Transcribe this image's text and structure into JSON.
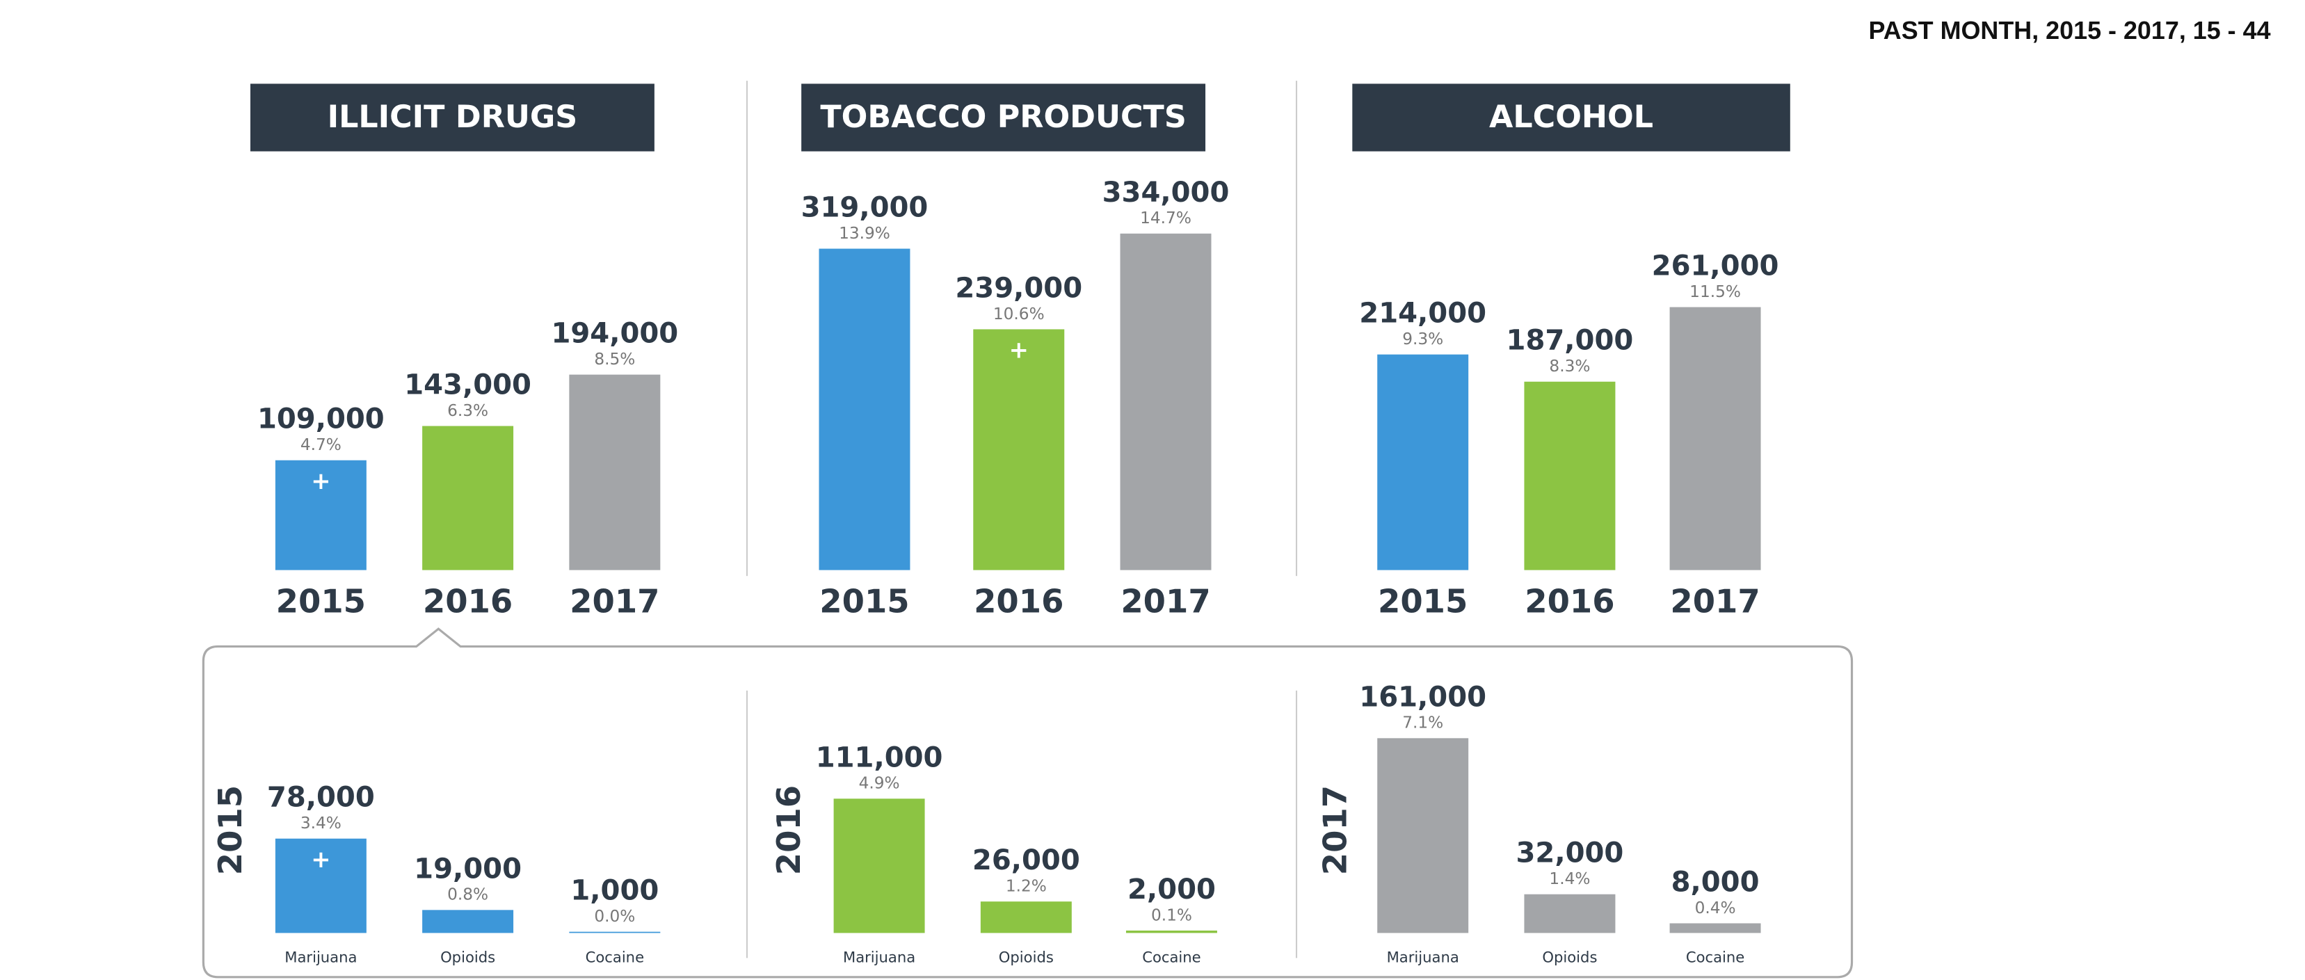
{
  "title": "PAST MONTH, 2015 - 2017, 15 - 44",
  "chart_data": [
    {
      "type": "bar",
      "title": "ILLICIT DRUGS",
      "categories": [
        "2015",
        "2016",
        "2017"
      ],
      "values": [
        109000,
        143000,
        194000
      ],
      "value_labels": [
        "109,000",
        "143,000",
        "194,000"
      ],
      "shares": [
        4.7,
        6.3,
        8.5
      ],
      "share_labels": [
        "4.7%",
        "6.3%",
        "8.5%"
      ],
      "markers": [
        "+",
        null,
        null
      ],
      "colors": [
        "#3d97d9",
        "#8cc443",
        "#a3a5a8"
      ],
      "ylim": [
        0,
        350000
      ]
    },
    {
      "type": "bar",
      "title": "TOBACCO PRODUCTS",
      "categories": [
        "2015",
        "2016",
        "2017"
      ],
      "values": [
        319000,
        239000,
        334000
      ],
      "value_labels": [
        "319,000",
        "239,000",
        "334,000"
      ],
      "shares": [
        13.9,
        10.6,
        14.7
      ],
      "share_labels": [
        "13.9%",
        "10.6%",
        "14.7%"
      ],
      "markers": [
        null,
        "+",
        null
      ],
      "colors": [
        "#3d97d9",
        "#8cc443",
        "#a3a5a8"
      ],
      "ylim": [
        0,
        350000
      ]
    },
    {
      "type": "bar",
      "title": "ALCOHOL",
      "categories": [
        "2015",
        "2016",
        "2017"
      ],
      "values": [
        214000,
        187000,
        261000
      ],
      "value_labels": [
        "214,000",
        "187,000",
        "261,000"
      ],
      "shares": [
        9.3,
        8.3,
        11.5
      ],
      "share_labels": [
        "9.3%",
        "8.3%",
        "11.5%"
      ],
      "markers": [
        null,
        null,
        null
      ],
      "colors": [
        "#3d97d9",
        "#8cc443",
        "#a3a5a8"
      ],
      "ylim": [
        0,
        350000
      ]
    },
    {
      "type": "bar",
      "title": "2015",
      "categories": [
        "Marijuana",
        "Opioids",
        "Cocaine"
      ],
      "values": [
        78000,
        19000,
        1000
      ],
      "value_labels": [
        "78,000",
        "19,000",
        "1,000"
      ],
      "shares": [
        3.4,
        0.8,
        0.0
      ],
      "share_labels": [
        "3.4%",
        "0.8%",
        "0.0%"
      ],
      "markers": [
        "+",
        null,
        null
      ],
      "colors": [
        "#3d97d9",
        "#3d97d9",
        "#3d97d9"
      ],
      "ylim": [
        0,
        170000
      ]
    },
    {
      "type": "bar",
      "title": "2016",
      "categories": [
        "Marijuana",
        "Opioids",
        "Cocaine"
      ],
      "values": [
        111000,
        26000,
        2000
      ],
      "value_labels": [
        "111,000",
        "26,000",
        "2,000"
      ],
      "shares": [
        4.9,
        1.2,
        0.1
      ],
      "share_labels": [
        "4.9%",
        "1.2%",
        "0.1%"
      ],
      "markers": [
        null,
        null,
        null
      ],
      "colors": [
        "#8cc443",
        "#8cc443",
        "#8cc443"
      ],
      "ylim": [
        0,
        170000
      ]
    },
    {
      "type": "bar",
      "title": "2017",
      "categories": [
        "Marijuana",
        "Opioids",
        "Cocaine"
      ],
      "values": [
        161000,
        32000,
        8000
      ],
      "value_labels": [
        "161,000",
        "32,000",
        "8,000"
      ],
      "shares": [
        7.1,
        1.4,
        0.4
      ],
      "share_labels": [
        "7.1%",
        "1.4%",
        "0.4%"
      ],
      "markers": [
        null,
        null,
        null
      ],
      "colors": [
        "#a3a5a8",
        "#a3a5a8",
        "#a3a5a8"
      ],
      "ylim": [
        0,
        170000
      ]
    }
  ]
}
